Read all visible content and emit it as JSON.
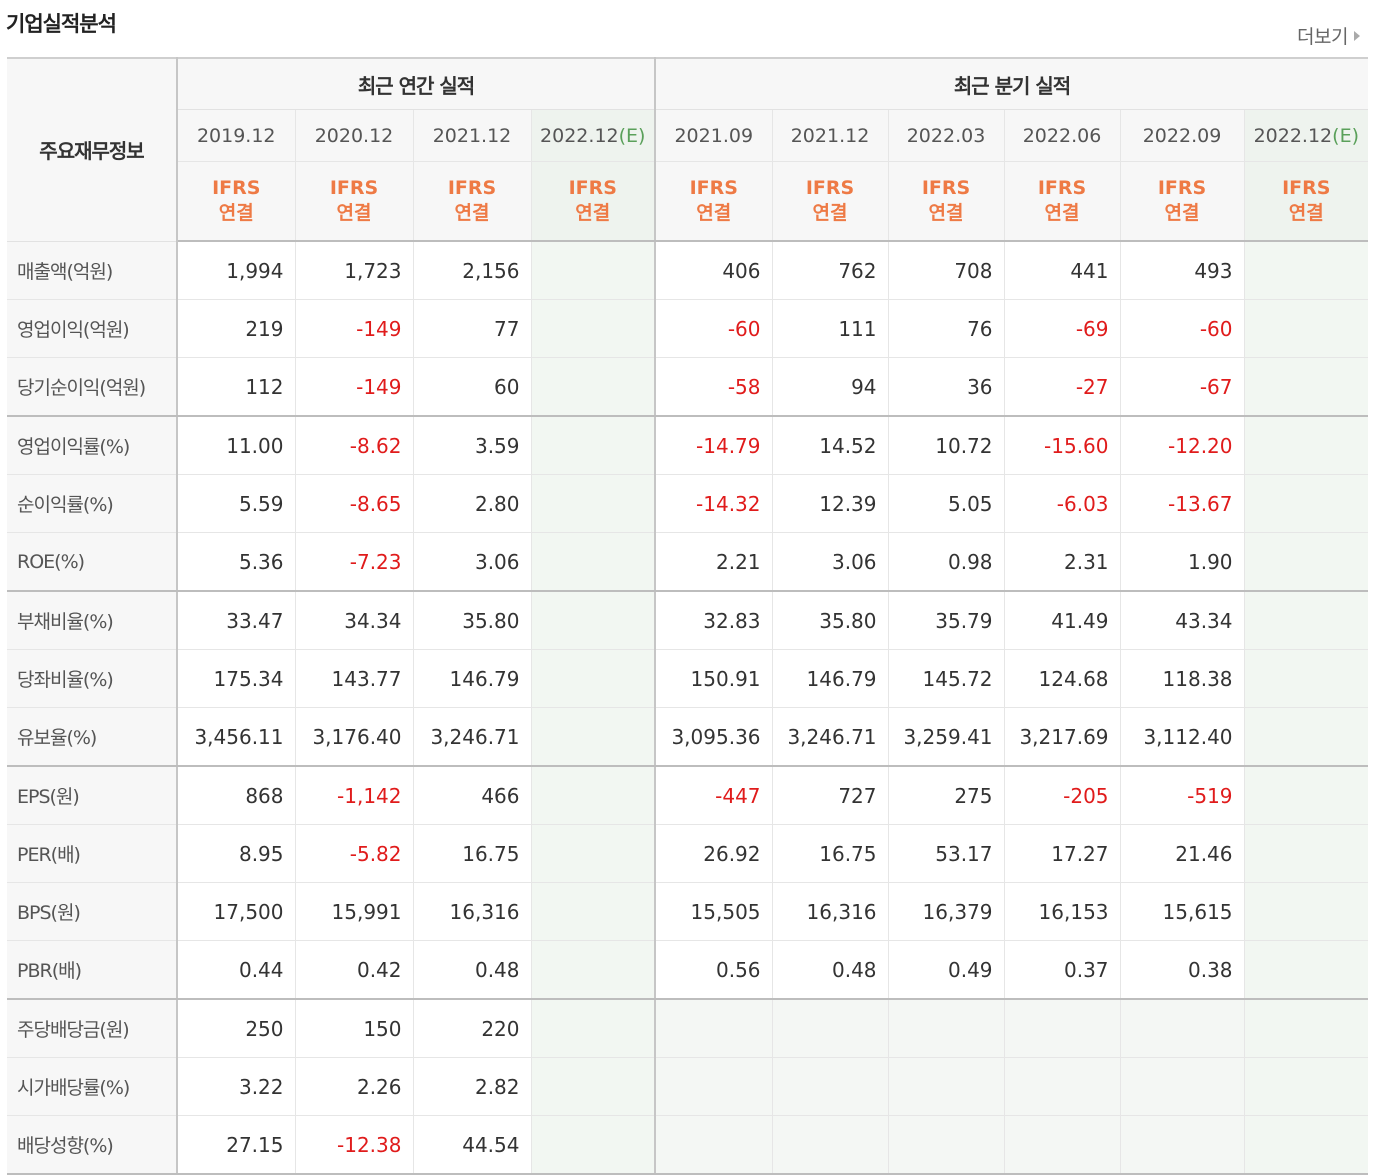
{
  "header": {
    "title": "기업실적분석",
    "more_label": "더보기"
  },
  "table": {
    "main_header": "주요재무정보",
    "annual_group": "최근 연간 실적",
    "quarter_group": "최근 분기 실적",
    "annual_periods": [
      {
        "date": "2019.12",
        "est": "",
        "acc1": "IFRS",
        "acc2": "연결"
      },
      {
        "date": "2020.12",
        "est": "",
        "acc1": "IFRS",
        "acc2": "연결"
      },
      {
        "date": "2021.12",
        "est": "",
        "acc1": "IFRS",
        "acc2": "연결"
      },
      {
        "date": "2022.12",
        "est": "(E)",
        "acc1": "IFRS",
        "acc2": "연결"
      }
    ],
    "quarter_periods": [
      {
        "date": "2021.09",
        "est": "",
        "acc1": "IFRS",
        "acc2": "연결"
      },
      {
        "date": "2021.12",
        "est": "",
        "acc1": "IFRS",
        "acc2": "연결"
      },
      {
        "date": "2022.03",
        "est": "",
        "acc1": "IFRS",
        "acc2": "연결"
      },
      {
        "date": "2022.06",
        "est": "",
        "acc1": "IFRS",
        "acc2": "연결"
      },
      {
        "date": "2022.09",
        "est": "",
        "acc1": "IFRS",
        "acc2": "연결"
      },
      {
        "date": "2022.12",
        "est": "(E)",
        "acc1": "IFRS",
        "acc2": "연결"
      }
    ],
    "rows": [
      {
        "label": "매출액(억원)",
        "annual": [
          "1,994",
          "1,723",
          "2,156",
          ""
        ],
        "quarter": [
          "406",
          "762",
          "708",
          "441",
          "493",
          ""
        ]
      },
      {
        "label": "영업이익(억원)",
        "annual": [
          "219",
          "-149",
          "77",
          ""
        ],
        "quarter": [
          "-60",
          "111",
          "76",
          "-69",
          "-60",
          ""
        ]
      },
      {
        "label": "당기순이익(억원)",
        "annual": [
          "112",
          "-149",
          "60",
          ""
        ],
        "quarter": [
          "-58",
          "94",
          "36",
          "-27",
          "-67",
          ""
        ]
      },
      {
        "label": "영업이익률(%)",
        "annual": [
          "11.00",
          "-8.62",
          "3.59",
          ""
        ],
        "quarter": [
          "-14.79",
          "14.52",
          "10.72",
          "-15.60",
          "-12.20",
          ""
        ]
      },
      {
        "label": "순이익률(%)",
        "annual": [
          "5.59",
          "-8.65",
          "2.80",
          ""
        ],
        "quarter": [
          "-14.32",
          "12.39",
          "5.05",
          "-6.03",
          "-13.67",
          ""
        ]
      },
      {
        "label": "ROE(%)",
        "annual": [
          "5.36",
          "-7.23",
          "3.06",
          ""
        ],
        "quarter": [
          "2.21",
          "3.06",
          "0.98",
          "2.31",
          "1.90",
          ""
        ]
      },
      {
        "label": "부채비율(%)",
        "annual": [
          "33.47",
          "34.34",
          "35.80",
          ""
        ],
        "quarter": [
          "32.83",
          "35.80",
          "35.79",
          "41.49",
          "43.34",
          ""
        ]
      },
      {
        "label": "당좌비율(%)",
        "annual": [
          "175.34",
          "143.77",
          "146.79",
          ""
        ],
        "quarter": [
          "150.91",
          "146.79",
          "145.72",
          "124.68",
          "118.38",
          ""
        ]
      },
      {
        "label": "유보율(%)",
        "annual": [
          "3,456.11",
          "3,176.40",
          "3,246.71",
          ""
        ],
        "quarter": [
          "3,095.36",
          "3,246.71",
          "3,259.41",
          "3,217.69",
          "3,112.40",
          ""
        ]
      },
      {
        "label": "EPS(원)",
        "annual": [
          "868",
          "-1,142",
          "466",
          ""
        ],
        "quarter": [
          "-447",
          "727",
          "275",
          "-205",
          "-519",
          ""
        ]
      },
      {
        "label": "PER(배)",
        "annual": [
          "8.95",
          "-5.82",
          "16.75",
          ""
        ],
        "quarter": [
          "26.92",
          "16.75",
          "53.17",
          "17.27",
          "21.46",
          ""
        ]
      },
      {
        "label": "BPS(원)",
        "annual": [
          "17,500",
          "15,991",
          "16,316",
          ""
        ],
        "quarter": [
          "15,505",
          "16,316",
          "16,379",
          "16,153",
          "15,615",
          ""
        ]
      },
      {
        "label": "PBR(배)",
        "annual": [
          "0.44",
          "0.42",
          "0.48",
          ""
        ],
        "quarter": [
          "0.56",
          "0.48",
          "0.49",
          "0.37",
          "0.38",
          ""
        ]
      },
      {
        "label": "주당배당금(원)",
        "annual": [
          "250",
          "150",
          "220",
          ""
        ],
        "quarter": [
          "",
          "",
          "",
          "",
          "",
          ""
        ]
      },
      {
        "label": "시가배당률(%)",
        "annual": [
          "3.22",
          "2.26",
          "2.82",
          ""
        ],
        "quarter": [
          "",
          "",
          "",
          "",
          "",
          ""
        ]
      },
      {
        "label": "배당성향(%)",
        "annual": [
          "27.15",
          "-12.38",
          "44.54",
          ""
        ],
        "quarter": [
          "",
          "",
          "",
          "",
          "",
          ""
        ]
      }
    ]
  },
  "colors": {
    "negative": "#e01b1b",
    "accounting": "#ee7a45",
    "estimate": "#5aa05a"
  }
}
